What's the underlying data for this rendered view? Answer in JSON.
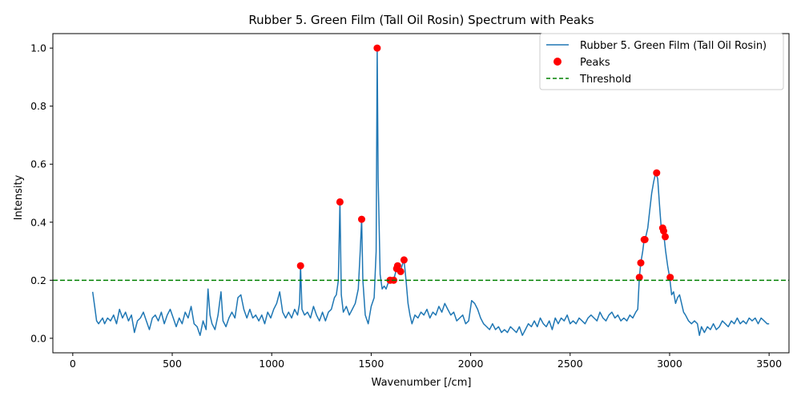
{
  "chart_data": {
    "type": "line",
    "title": "Rubber 5. Green Film (Tall Oil Rosin) Spectrum with Peaks",
    "xlabel": "Wavenumber [/cm]",
    "ylabel": "Intensity",
    "xlim": [
      -100,
      3600
    ],
    "ylim": [
      -0.05,
      1.05
    ],
    "xticks": [
      0,
      500,
      1000,
      1500,
      2000,
      2500,
      3000,
      3500
    ],
    "yticks": [
      0.0,
      0.2,
      0.4,
      0.6,
      0.8,
      1.0
    ],
    "xtick_labels": [
      "0",
      "500",
      "1000",
      "1500",
      "2000",
      "2500",
      "3000",
      "3500"
    ],
    "ytick_labels": [
      "0.0",
      "0.2",
      "0.4",
      "0.6",
      "0.8",
      "1.0"
    ],
    "legend": {
      "placement": "top-right",
      "entries": [
        "Rubber 5. Green Film (Tall Oil Rosin)",
        "Peaks",
        "Threshold"
      ]
    },
    "series": [
      {
        "name": "Rubber 5. Green Film (Tall Oil Rosin)",
        "color": "#1f77b4",
        "style": "line",
        "points": [
          [
            100,
            0.16
          ],
          [
            110,
            0.11
          ],
          [
            120,
            0.06
          ],
          [
            130,
            0.05
          ],
          [
            140,
            0.06
          ],
          [
            150,
            0.07
          ],
          [
            160,
            0.05
          ],
          [
            175,
            0.07
          ],
          [
            190,
            0.06
          ],
          [
            205,
            0.08
          ],
          [
            220,
            0.05
          ],
          [
            235,
            0.1
          ],
          [
            250,
            0.07
          ],
          [
            265,
            0.09
          ],
          [
            280,
            0.06
          ],
          [
            295,
            0.08
          ],
          [
            310,
            0.02
          ],
          [
            325,
            0.06
          ],
          [
            340,
            0.07
          ],
          [
            355,
            0.09
          ],
          [
            370,
            0.06
          ],
          [
            385,
            0.03
          ],
          [
            400,
            0.07
          ],
          [
            415,
            0.08
          ],
          [
            430,
            0.06
          ],
          [
            445,
            0.09
          ],
          [
            460,
            0.05
          ],
          [
            475,
            0.08
          ],
          [
            490,
            0.1
          ],
          [
            505,
            0.07
          ],
          [
            520,
            0.04
          ],
          [
            535,
            0.07
          ],
          [
            550,
            0.05
          ],
          [
            565,
            0.09
          ],
          [
            580,
            0.07
          ],
          [
            595,
            0.11
          ],
          [
            610,
            0.05
          ],
          [
            625,
            0.04
          ],
          [
            640,
            0.01
          ],
          [
            655,
            0.06
          ],
          [
            670,
            0.03
          ],
          [
            680,
            0.17
          ],
          [
            690,
            0.08
          ],
          [
            700,
            0.05
          ],
          [
            715,
            0.03
          ],
          [
            730,
            0.08
          ],
          [
            745,
            0.16
          ],
          [
            755,
            0.06
          ],
          [
            770,
            0.04
          ],
          [
            785,
            0.07
          ],
          [
            800,
            0.09
          ],
          [
            815,
            0.07
          ],
          [
            830,
            0.14
          ],
          [
            845,
            0.15
          ],
          [
            860,
            0.1
          ],
          [
            875,
            0.07
          ],
          [
            890,
            0.1
          ],
          [
            905,
            0.07
          ],
          [
            920,
            0.08
          ],
          [
            935,
            0.06
          ],
          [
            950,
            0.08
          ],
          [
            965,
            0.05
          ],
          [
            980,
            0.09
          ],
          [
            995,
            0.07
          ],
          [
            1010,
            0.1
          ],
          [
            1025,
            0.12
          ],
          [
            1040,
            0.16
          ],
          [
            1055,
            0.09
          ],
          [
            1070,
            0.07
          ],
          [
            1085,
            0.09
          ],
          [
            1100,
            0.07
          ],
          [
            1115,
            0.1
          ],
          [
            1130,
            0.08
          ],
          [
            1140,
            0.12
          ],
          [
            1145,
            0.25
          ],
          [
            1152,
            0.1
          ],
          [
            1165,
            0.08
          ],
          [
            1180,
            0.09
          ],
          [
            1195,
            0.07
          ],
          [
            1210,
            0.11
          ],
          [
            1225,
            0.08
          ],
          [
            1240,
            0.06
          ],
          [
            1255,
            0.09
          ],
          [
            1270,
            0.06
          ],
          [
            1285,
            0.09
          ],
          [
            1300,
            0.1
          ],
          [
            1315,
            0.14
          ],
          [
            1325,
            0.15
          ],
          [
            1335,
            0.2
          ],
          [
            1343,
            0.47
          ],
          [
            1350,
            0.15
          ],
          [
            1360,
            0.09
          ],
          [
            1375,
            0.11
          ],
          [
            1390,
            0.08
          ],
          [
            1405,
            0.1
          ],
          [
            1420,
            0.12
          ],
          [
            1435,
            0.17
          ],
          [
            1445,
            0.3
          ],
          [
            1452,
            0.41
          ],
          [
            1458,
            0.2
          ],
          [
            1470,
            0.08
          ],
          [
            1485,
            0.05
          ],
          [
            1500,
            0.11
          ],
          [
            1515,
            0.14
          ],
          [
            1525,
            0.3
          ],
          [
            1530,
            1.0
          ],
          [
            1535,
            0.55
          ],
          [
            1545,
            0.22
          ],
          [
            1555,
            0.17
          ],
          [
            1565,
            0.18
          ],
          [
            1575,
            0.17
          ],
          [
            1585,
            0.19
          ],
          [
            1595,
            0.2
          ],
          [
            1605,
            0.2
          ],
          [
            1613,
            0.2
          ],
          [
            1620,
            0.22
          ],
          [
            1628,
            0.24
          ],
          [
            1633,
            0.25
          ],
          [
            1640,
            0.23
          ],
          [
            1648,
            0.23
          ],
          [
            1655,
            0.25
          ],
          [
            1665,
            0.27
          ],
          [
            1675,
            0.2
          ],
          [
            1685,
            0.12
          ],
          [
            1695,
            0.08
          ],
          [
            1705,
            0.05
          ],
          [
            1720,
            0.08
          ],
          [
            1735,
            0.07
          ],
          [
            1750,
            0.09
          ],
          [
            1765,
            0.08
          ],
          [
            1780,
            0.1
          ],
          [
            1795,
            0.07
          ],
          [
            1810,
            0.09
          ],
          [
            1825,
            0.08
          ],
          [
            1840,
            0.11
          ],
          [
            1855,
            0.09
          ],
          [
            1870,
            0.12
          ],
          [
            1885,
            0.1
          ],
          [
            1900,
            0.08
          ],
          [
            1915,
            0.09
          ],
          [
            1930,
            0.06
          ],
          [
            1945,
            0.07
          ],
          [
            1960,
            0.08
          ],
          [
            1975,
            0.05
          ],
          [
            1990,
            0.06
          ],
          [
            2005,
            0.13
          ],
          [
            2020,
            0.12
          ],
          [
            2035,
            0.1
          ],
          [
            2050,
            0.07
          ],
          [
            2065,
            0.05
          ],
          [
            2080,
            0.04
          ],
          [
            2095,
            0.03
          ],
          [
            2110,
            0.05
          ],
          [
            2125,
            0.03
          ],
          [
            2140,
            0.04
          ],
          [
            2155,
            0.02
          ],
          [
            2170,
            0.03
          ],
          [
            2185,
            0.02
          ],
          [
            2200,
            0.04
          ],
          [
            2215,
            0.03
          ],
          [
            2230,
            0.02
          ],
          [
            2245,
            0.04
          ],
          [
            2260,
            0.01
          ],
          [
            2275,
            0.03
          ],
          [
            2290,
            0.05
          ],
          [
            2305,
            0.04
          ],
          [
            2320,
            0.06
          ],
          [
            2335,
            0.04
          ],
          [
            2350,
            0.07
          ],
          [
            2365,
            0.05
          ],
          [
            2380,
            0.04
          ],
          [
            2395,
            0.06
          ],
          [
            2410,
            0.03
          ],
          [
            2425,
            0.07
          ],
          [
            2440,
            0.05
          ],
          [
            2455,
            0.07
          ],
          [
            2470,
            0.06
          ],
          [
            2485,
            0.08
          ],
          [
            2500,
            0.05
          ],
          [
            2515,
            0.06
          ],
          [
            2530,
            0.05
          ],
          [
            2545,
            0.07
          ],
          [
            2560,
            0.06
          ],
          [
            2575,
            0.05
          ],
          [
            2590,
            0.07
          ],
          [
            2605,
            0.08
          ],
          [
            2620,
            0.07
          ],
          [
            2635,
            0.06
          ],
          [
            2650,
            0.09
          ],
          [
            2665,
            0.07
          ],
          [
            2680,
            0.06
          ],
          [
            2695,
            0.08
          ],
          [
            2710,
            0.09
          ],
          [
            2725,
            0.07
          ],
          [
            2740,
            0.08
          ],
          [
            2755,
            0.06
          ],
          [
            2770,
            0.07
          ],
          [
            2785,
            0.06
          ],
          [
            2800,
            0.08
          ],
          [
            2815,
            0.07
          ],
          [
            2830,
            0.09
          ],
          [
            2840,
            0.1
          ],
          [
            2848,
            0.21
          ],
          [
            2855,
            0.26
          ],
          [
            2865,
            0.3
          ],
          [
            2872,
            0.34
          ],
          [
            2880,
            0.35
          ],
          [
            2890,
            0.38
          ],
          [
            2900,
            0.44
          ],
          [
            2910,
            0.5
          ],
          [
            2920,
            0.54
          ],
          [
            2930,
            0.57
          ],
          [
            2940,
            0.55
          ],
          [
            2950,
            0.45
          ],
          [
            2958,
            0.38
          ],
          [
            2965,
            0.37
          ],
          [
            2972,
            0.35
          ],
          [
            2980,
            0.3
          ],
          [
            2990,
            0.25
          ],
          [
            3000,
            0.21
          ],
          [
            3010,
            0.15
          ],
          [
            3020,
            0.16
          ],
          [
            3030,
            0.12
          ],
          [
            3040,
            0.14
          ],
          [
            3050,
            0.15
          ],
          [
            3060,
            0.12
          ],
          [
            3070,
            0.09
          ],
          [
            3080,
            0.08
          ],
          [
            3095,
            0.06
          ],
          [
            3110,
            0.05
          ],
          [
            3125,
            0.06
          ],
          [
            3140,
            0.05
          ],
          [
            3150,
            0.01
          ],
          [
            3160,
            0.04
          ],
          [
            3175,
            0.02
          ],
          [
            3190,
            0.04
          ],
          [
            3205,
            0.03
          ],
          [
            3220,
            0.05
          ],
          [
            3235,
            0.03
          ],
          [
            3250,
            0.04
          ],
          [
            3265,
            0.06
          ],
          [
            3280,
            0.05
          ],
          [
            3295,
            0.04
          ],
          [
            3310,
            0.06
          ],
          [
            3325,
            0.05
          ],
          [
            3340,
            0.07
          ],
          [
            3355,
            0.05
          ],
          [
            3370,
            0.06
          ],
          [
            3385,
            0.05
          ],
          [
            3400,
            0.07
          ],
          [
            3415,
            0.06
          ],
          [
            3430,
            0.07
          ],
          [
            3445,
            0.05
          ],
          [
            3460,
            0.07
          ],
          [
            3475,
            0.06
          ],
          [
            3490,
            0.05
          ],
          [
            3500,
            0.05
          ]
        ]
      },
      {
        "name": "Peaks",
        "color": "#ff0000",
        "style": "scatter",
        "points": [
          [
            1145,
            0.25
          ],
          [
            1343,
            0.47
          ],
          [
            1452,
            0.41
          ],
          [
            1530,
            1.0
          ],
          [
            1595,
            0.2
          ],
          [
            1613,
            0.2
          ],
          [
            1628,
            0.24
          ],
          [
            1633,
            0.25
          ],
          [
            1648,
            0.23
          ],
          [
            1665,
            0.27
          ],
          [
            2848,
            0.21
          ],
          [
            2855,
            0.26
          ],
          [
            2872,
            0.34
          ],
          [
            2876,
            0.34
          ],
          [
            2935,
            0.57
          ],
          [
            2965,
            0.38
          ],
          [
            2970,
            0.37
          ],
          [
            2978,
            0.35
          ],
          [
            3003,
            0.21
          ]
        ]
      },
      {
        "name": "Threshold",
        "color": "#008000",
        "style": "dashed-hline",
        "y": 0.2
      }
    ]
  }
}
